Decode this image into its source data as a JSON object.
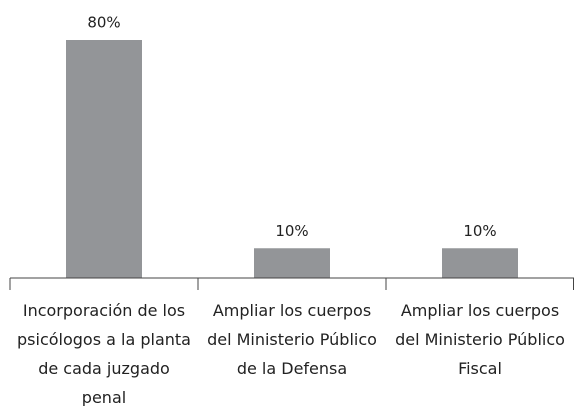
{
  "chart_data": {
    "type": "bar",
    "categories": [
      "Incorporación de los psicólogos a la planta de cada juzgado penal",
      "Ampliar los cuerpos del Ministerio Público de la Defensa",
      "Ampliar los cuerpos del Ministerio Público Fiscal"
    ],
    "values": [
      80,
      10,
      10
    ],
    "value_labels": [
      "80%",
      "10%",
      "10%"
    ],
    "color": "#939598"
  }
}
